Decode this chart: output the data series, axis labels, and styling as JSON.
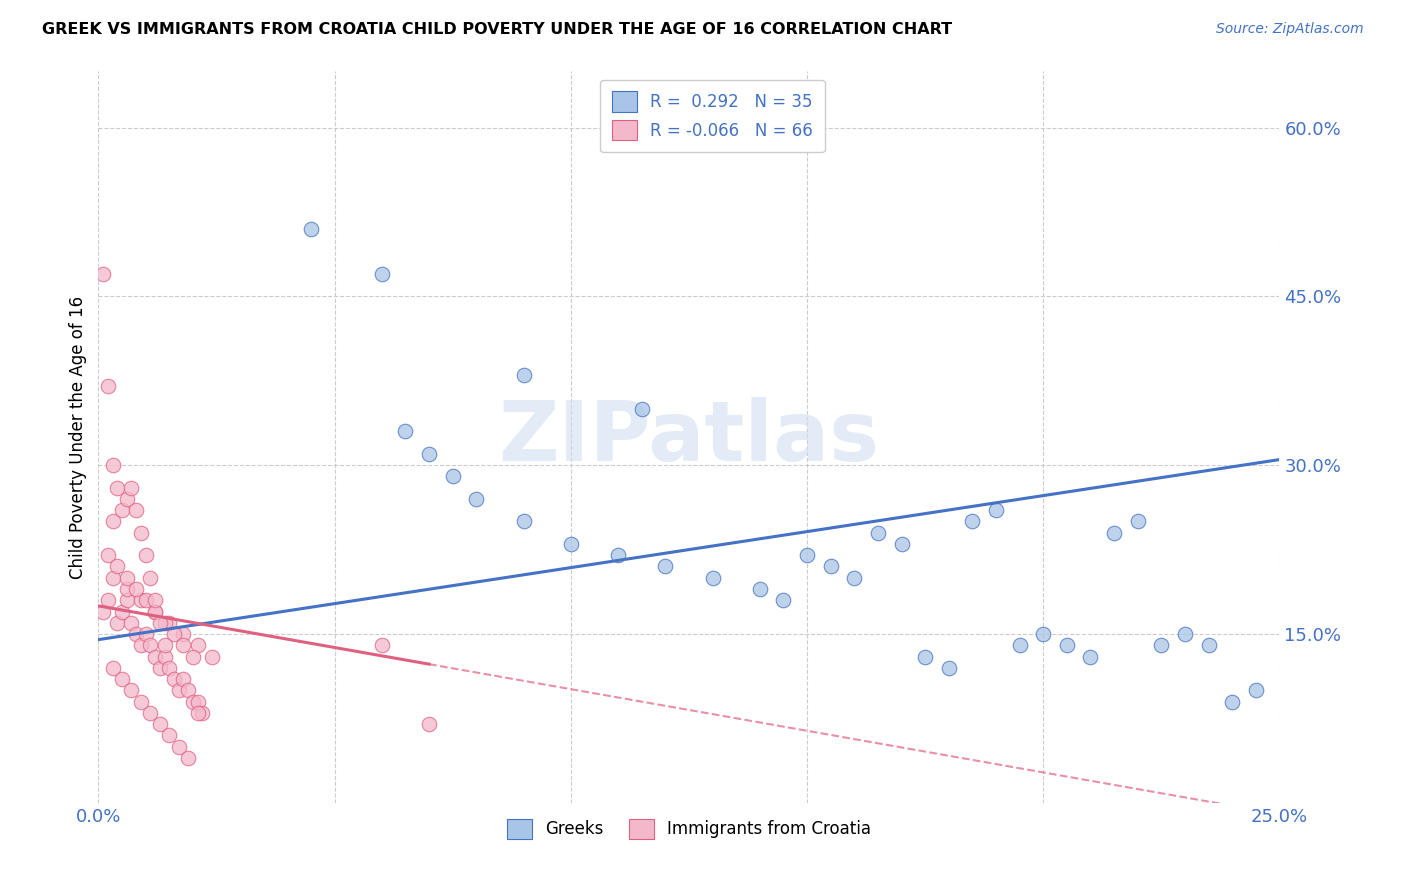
{
  "title": "GREEK VS IMMIGRANTS FROM CROATIA CHILD POVERTY UNDER THE AGE OF 16 CORRELATION CHART",
  "source": "Source: ZipAtlas.com",
  "ylabel": "Child Poverty Under the Age of 16",
  "xlim": [
    0,
    0.25
  ],
  "ylim": [
    0,
    0.65
  ],
  "xtick_positions": [
    0.0,
    0.05,
    0.1,
    0.15,
    0.2,
    0.25
  ],
  "xtick_labels": [
    "0.0%",
    "",
    "",
    "",
    "",
    "25.0%"
  ],
  "ytick_right_positions": [
    0.15,
    0.3,
    0.45,
    0.6
  ],
  "ytick_right_labels": [
    "15.0%",
    "30.0%",
    "45.0%",
    "60.0%"
  ],
  "legend_labels": [
    "Greeks",
    "Immigrants from Croatia"
  ],
  "r_greek": 0.292,
  "n_greek": 35,
  "r_croatia": -0.066,
  "n_croatia": 66,
  "color_greek_fill": "#a8c4e6",
  "color_croatia_fill": "#f4b8cb",
  "color_greek_line": "#4472c4",
  "color_croatia_line": "#e06080",
  "watermark": "ZIPatlas",
  "greek_trend_x0": 0.0,
  "greek_trend_y0": 0.145,
  "greek_trend_x1": 0.25,
  "greek_trend_y1": 0.305,
  "croatia_trend_x0": 0.0,
  "croatia_trend_y0": 0.175,
  "croatia_trend_x1": 0.25,
  "croatia_trend_y1": -0.01,
  "greek_x": [
    0.045,
    0.06,
    0.09,
    0.115,
    0.065,
    0.07,
    0.075,
    0.08,
    0.09,
    0.1,
    0.11,
    0.12,
    0.13,
    0.14,
    0.145,
    0.15,
    0.155,
    0.16,
    0.165,
    0.17,
    0.175,
    0.18,
    0.185,
    0.19,
    0.195,
    0.2,
    0.205,
    0.21,
    0.215,
    0.22,
    0.225,
    0.23,
    0.235,
    0.24,
    0.245
  ],
  "greek_y": [
    0.51,
    0.47,
    0.38,
    0.35,
    0.33,
    0.31,
    0.29,
    0.27,
    0.25,
    0.23,
    0.22,
    0.21,
    0.2,
    0.19,
    0.18,
    0.22,
    0.21,
    0.2,
    0.24,
    0.23,
    0.13,
    0.12,
    0.25,
    0.26,
    0.14,
    0.15,
    0.14,
    0.13,
    0.24,
    0.25,
    0.14,
    0.15,
    0.14,
    0.09,
    0.1
  ],
  "croatia_x": [
    0.001,
    0.002,
    0.003,
    0.004,
    0.005,
    0.006,
    0.007,
    0.008,
    0.009,
    0.01,
    0.011,
    0.012,
    0.013,
    0.014,
    0.015,
    0.016,
    0.017,
    0.018,
    0.019,
    0.02,
    0.021,
    0.022,
    0.003,
    0.006,
    0.009,
    0.012,
    0.015,
    0.018,
    0.021,
    0.024,
    0.002,
    0.004,
    0.006,
    0.008,
    0.01,
    0.012,
    0.014,
    0.016,
    0.018,
    0.02,
    0.003,
    0.005,
    0.007,
    0.009,
    0.011,
    0.013,
    0.015,
    0.017,
    0.019,
    0.021,
    0.001,
    0.002,
    0.003,
    0.004,
    0.005,
    0.006,
    0.007,
    0.008,
    0.009,
    0.01,
    0.011,
    0.012,
    0.013,
    0.014,
    0.06,
    0.07
  ],
  "croatia_y": [
    0.17,
    0.18,
    0.25,
    0.16,
    0.17,
    0.18,
    0.16,
    0.15,
    0.14,
    0.15,
    0.14,
    0.13,
    0.12,
    0.13,
    0.12,
    0.11,
    0.1,
    0.11,
    0.1,
    0.09,
    0.09,
    0.08,
    0.2,
    0.19,
    0.18,
    0.17,
    0.16,
    0.15,
    0.14,
    0.13,
    0.22,
    0.21,
    0.2,
    0.19,
    0.18,
    0.17,
    0.16,
    0.15,
    0.14,
    0.13,
    0.12,
    0.11,
    0.1,
    0.09,
    0.08,
    0.07,
    0.06,
    0.05,
    0.04,
    0.08,
    0.47,
    0.37,
    0.3,
    0.28,
    0.26,
    0.27,
    0.28,
    0.26,
    0.24,
    0.22,
    0.2,
    0.18,
    0.16,
    0.14,
    0.14,
    0.07
  ]
}
